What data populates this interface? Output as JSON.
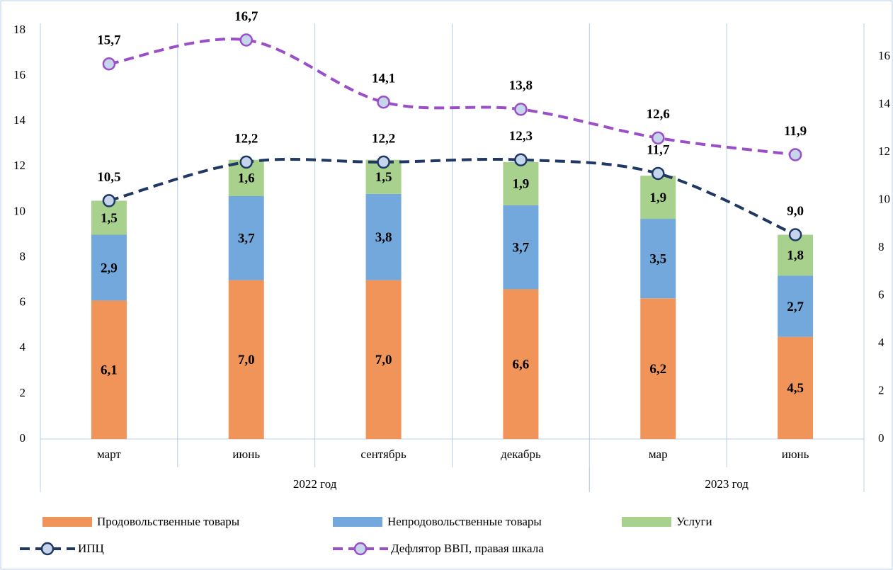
{
  "chart_data": {
    "type": "bar",
    "categories": [
      "март",
      "июнь",
      "сентябрь",
      "декабрь",
      "мар",
      "июнь"
    ],
    "groups": [
      {
        "label": "2022 год",
        "count": 4
      },
      {
        "label": "2023 год",
        "count": 2
      }
    ],
    "stacked": true,
    "series": [
      {
        "name": "Продовольственные товары",
        "color": "#f0945a",
        "type": "bar",
        "values": [
          6.1,
          7.0,
          7.0,
          6.6,
          6.2,
          4.5
        ],
        "value_labels": [
          "6,1",
          "7,0",
          "7,0",
          "6,6",
          "6,2",
          "4,5"
        ]
      },
      {
        "name": "Непродовольственные товары",
        "color": "#72a8dc",
        "type": "bar",
        "values": [
          2.9,
          3.7,
          3.8,
          3.7,
          3.5,
          2.7
        ],
        "value_labels": [
          "2,9",
          "3,7",
          "3,8",
          "3,7",
          "3,5",
          "2,7"
        ]
      },
      {
        "name": "Услуги",
        "color": "#a9d18e",
        "type": "bar",
        "values": [
          1.5,
          1.6,
          1.5,
          1.9,
          1.9,
          1.8
        ],
        "value_labels": [
          "1,5",
          "1,6",
          "1,5",
          "1,9",
          "1,9",
          "1,8"
        ]
      },
      {
        "name": "ИПЦ",
        "color": "#1f3864",
        "type": "line",
        "values": [
          10.5,
          12.2,
          12.2,
          12.3,
          11.7,
          9.0
        ],
        "value_labels": [
          "10,5",
          "12,2",
          "12,2",
          "12,3",
          "11,7",
          "9,0"
        ]
      },
      {
        "name": "Дефлятор ВВП, правая шкала",
        "color": "#9b4fc7",
        "type": "line",
        "axis": "y2",
        "values": [
          15.7,
          16.7,
          14.1,
          13.8,
          12.6,
          11.9
        ],
        "value_labels": [
          "15,7",
          "16,7",
          "14,1",
          "13,8",
          "12,6",
          "11,9"
        ]
      }
    ],
    "ylim": [
      0,
      18
    ],
    "yticks": [
      0,
      2,
      4,
      6,
      8,
      10,
      12,
      14,
      16,
      18
    ],
    "y2lim": [
      0,
      17.1
    ],
    "y2ticks": [
      0,
      2,
      4,
      6,
      8,
      10,
      12,
      14,
      16
    ],
    "marker_fill": "#c5d5ec"
  }
}
